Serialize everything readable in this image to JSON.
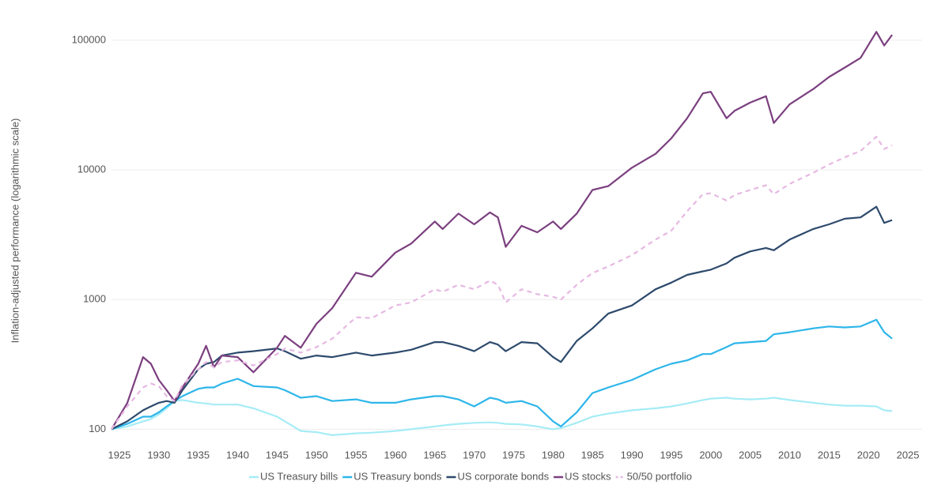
{
  "chart_data": {
    "type": "line",
    "ylabel": "Inflation-adjusted performance (logarithmic scale)",
    "log_y": true,
    "grid": true,
    "legend": "bottom",
    "xlim": [
      1923,
      2027
    ],
    "ylim": [
      85,
      134000
    ],
    "xticks": [
      1925,
      1930,
      1935,
      1940,
      1945,
      1950,
      1955,
      1960,
      1965,
      1970,
      1975,
      1980,
      1985,
      1990,
      1995,
      2000,
      2005,
      2010,
      2015,
      2020,
      2025
    ],
    "yticks": [
      100,
      1000,
      10000,
      100000
    ],
    "x": [
      1924,
      1926,
      1928,
      1929,
      1930,
      1931,
      1932,
      1933,
      1935,
      1936,
      1937,
      1938,
      1940,
      1942,
      1945,
      1946,
      1948,
      1950,
      1952,
      1955,
      1957,
      1960,
      1962,
      1965,
      1966,
      1968,
      1970,
      1972,
      1973,
      1974,
      1976,
      1978,
      1980,
      1981,
      1983,
      1985,
      1987,
      1990,
      1993,
      1995,
      1997,
      1999,
      2000,
      2002,
      2003,
      2005,
      2007,
      2008,
      2010,
      2013,
      2015,
      2017,
      2019,
      2021,
      2022,
      2023
    ],
    "series": [
      {
        "name": "US Treasury bills",
        "color": "#a6ecf6",
        "dashed": false,
        "values": [
          100,
          105,
          115,
          120,
          130,
          145,
          165,
          168,
          160,
          158,
          155,
          155,
          155,
          145,
          125,
          115,
          97,
          95,
          90,
          93,
          94,
          97,
          100,
          105,
          107,
          110,
          112,
          113,
          112,
          110,
          109,
          105,
          100,
          102,
          112,
          125,
          132,
          140,
          145,
          150,
          158,
          168,
          172,
          175,
          172,
          170,
          172,
          175,
          168,
          160,
          155,
          152,
          152,
          150,
          140,
          138
        ]
      },
      {
        "name": "US Treasury bonds",
        "color": "#2db6ea",
        "dashed": false,
        "values": [
          100,
          110,
          125,
          125,
          135,
          150,
          165,
          180,
          205,
          210,
          210,
          225,
          245,
          215,
          210,
          200,
          175,
          180,
          165,
          170,
          160,
          160,
          170,
          180,
          180,
          170,
          150,
          175,
          170,
          160,
          165,
          150,
          115,
          105,
          135,
          190,
          210,
          240,
          290,
          320,
          340,
          380,
          380,
          430,
          460,
          470,
          480,
          540,
          560,
          600,
          620,
          610,
          620,
          700,
          560,
          500
        ]
      },
      {
        "name": "US corporate bonds",
        "color": "#2d4a6c",
        "dashed": false,
        "values": [
          100,
          115,
          140,
          150,
          160,
          165,
          160,
          200,
          290,
          320,
          330,
          370,
          390,
          400,
          420,
          400,
          350,
          370,
          360,
          390,
          370,
          390,
          410,
          470,
          470,
          440,
          400,
          470,
          450,
          400,
          470,
          460,
          360,
          330,
          480,
          600,
          780,
          900,
          1200,
          1350,
          1550,
          1650,
          1700,
          1900,
          2100,
          2350,
          2500,
          2400,
          2900,
          3500,
          3800,
          4200,
          4300,
          5200,
          3900,
          4100
        ]
      },
      {
        "name": "US stocks",
        "color": "#7b3f7f",
        "dashed": false,
        "values": [
          100,
          159,
          360,
          320,
          240,
          200,
          165,
          210,
          320,
          440,
          300,
          370,
          360,
          275,
          425,
          525,
          425,
          650,
          860,
          1610,
          1500,
          2300,
          2700,
          4000,
          3500,
          4600,
          3800,
          4700,
          4300,
          2550,
          3700,
          3300,
          4000,
          3500,
          4600,
          7000,
          7500,
          10400,
          13300,
          17500,
          25000,
          38900,
          40000,
          25000,
          28500,
          33000,
          37000,
          23000,
          32000,
          42000,
          52000,
          61500,
          73000,
          116000,
          91000,
          110000
        ]
      },
      {
        "name": "50/50 portfolio",
        "color": "#e6b8e2",
        "dashed": true,
        "values": [
          100,
          150,
          210,
          225,
          215,
          180,
          165,
          220,
          290,
          330,
          300,
          330,
          340,
          310,
          380,
          420,
          390,
          430,
          500,
          730,
          720,
          900,
          950,
          1200,
          1150,
          1300,
          1200,
          1400,
          1300,
          950,
          1200,
          1100,
          1050,
          1000,
          1300,
          1600,
          1800,
          2200,
          2900,
          3400,
          4800,
          6500,
          6600,
          5800,
          6400,
          7000,
          7600,
          6500,
          7800,
          9500,
          11000,
          12500,
          14000,
          18000,
          14500,
          15500
        ]
      }
    ]
  }
}
